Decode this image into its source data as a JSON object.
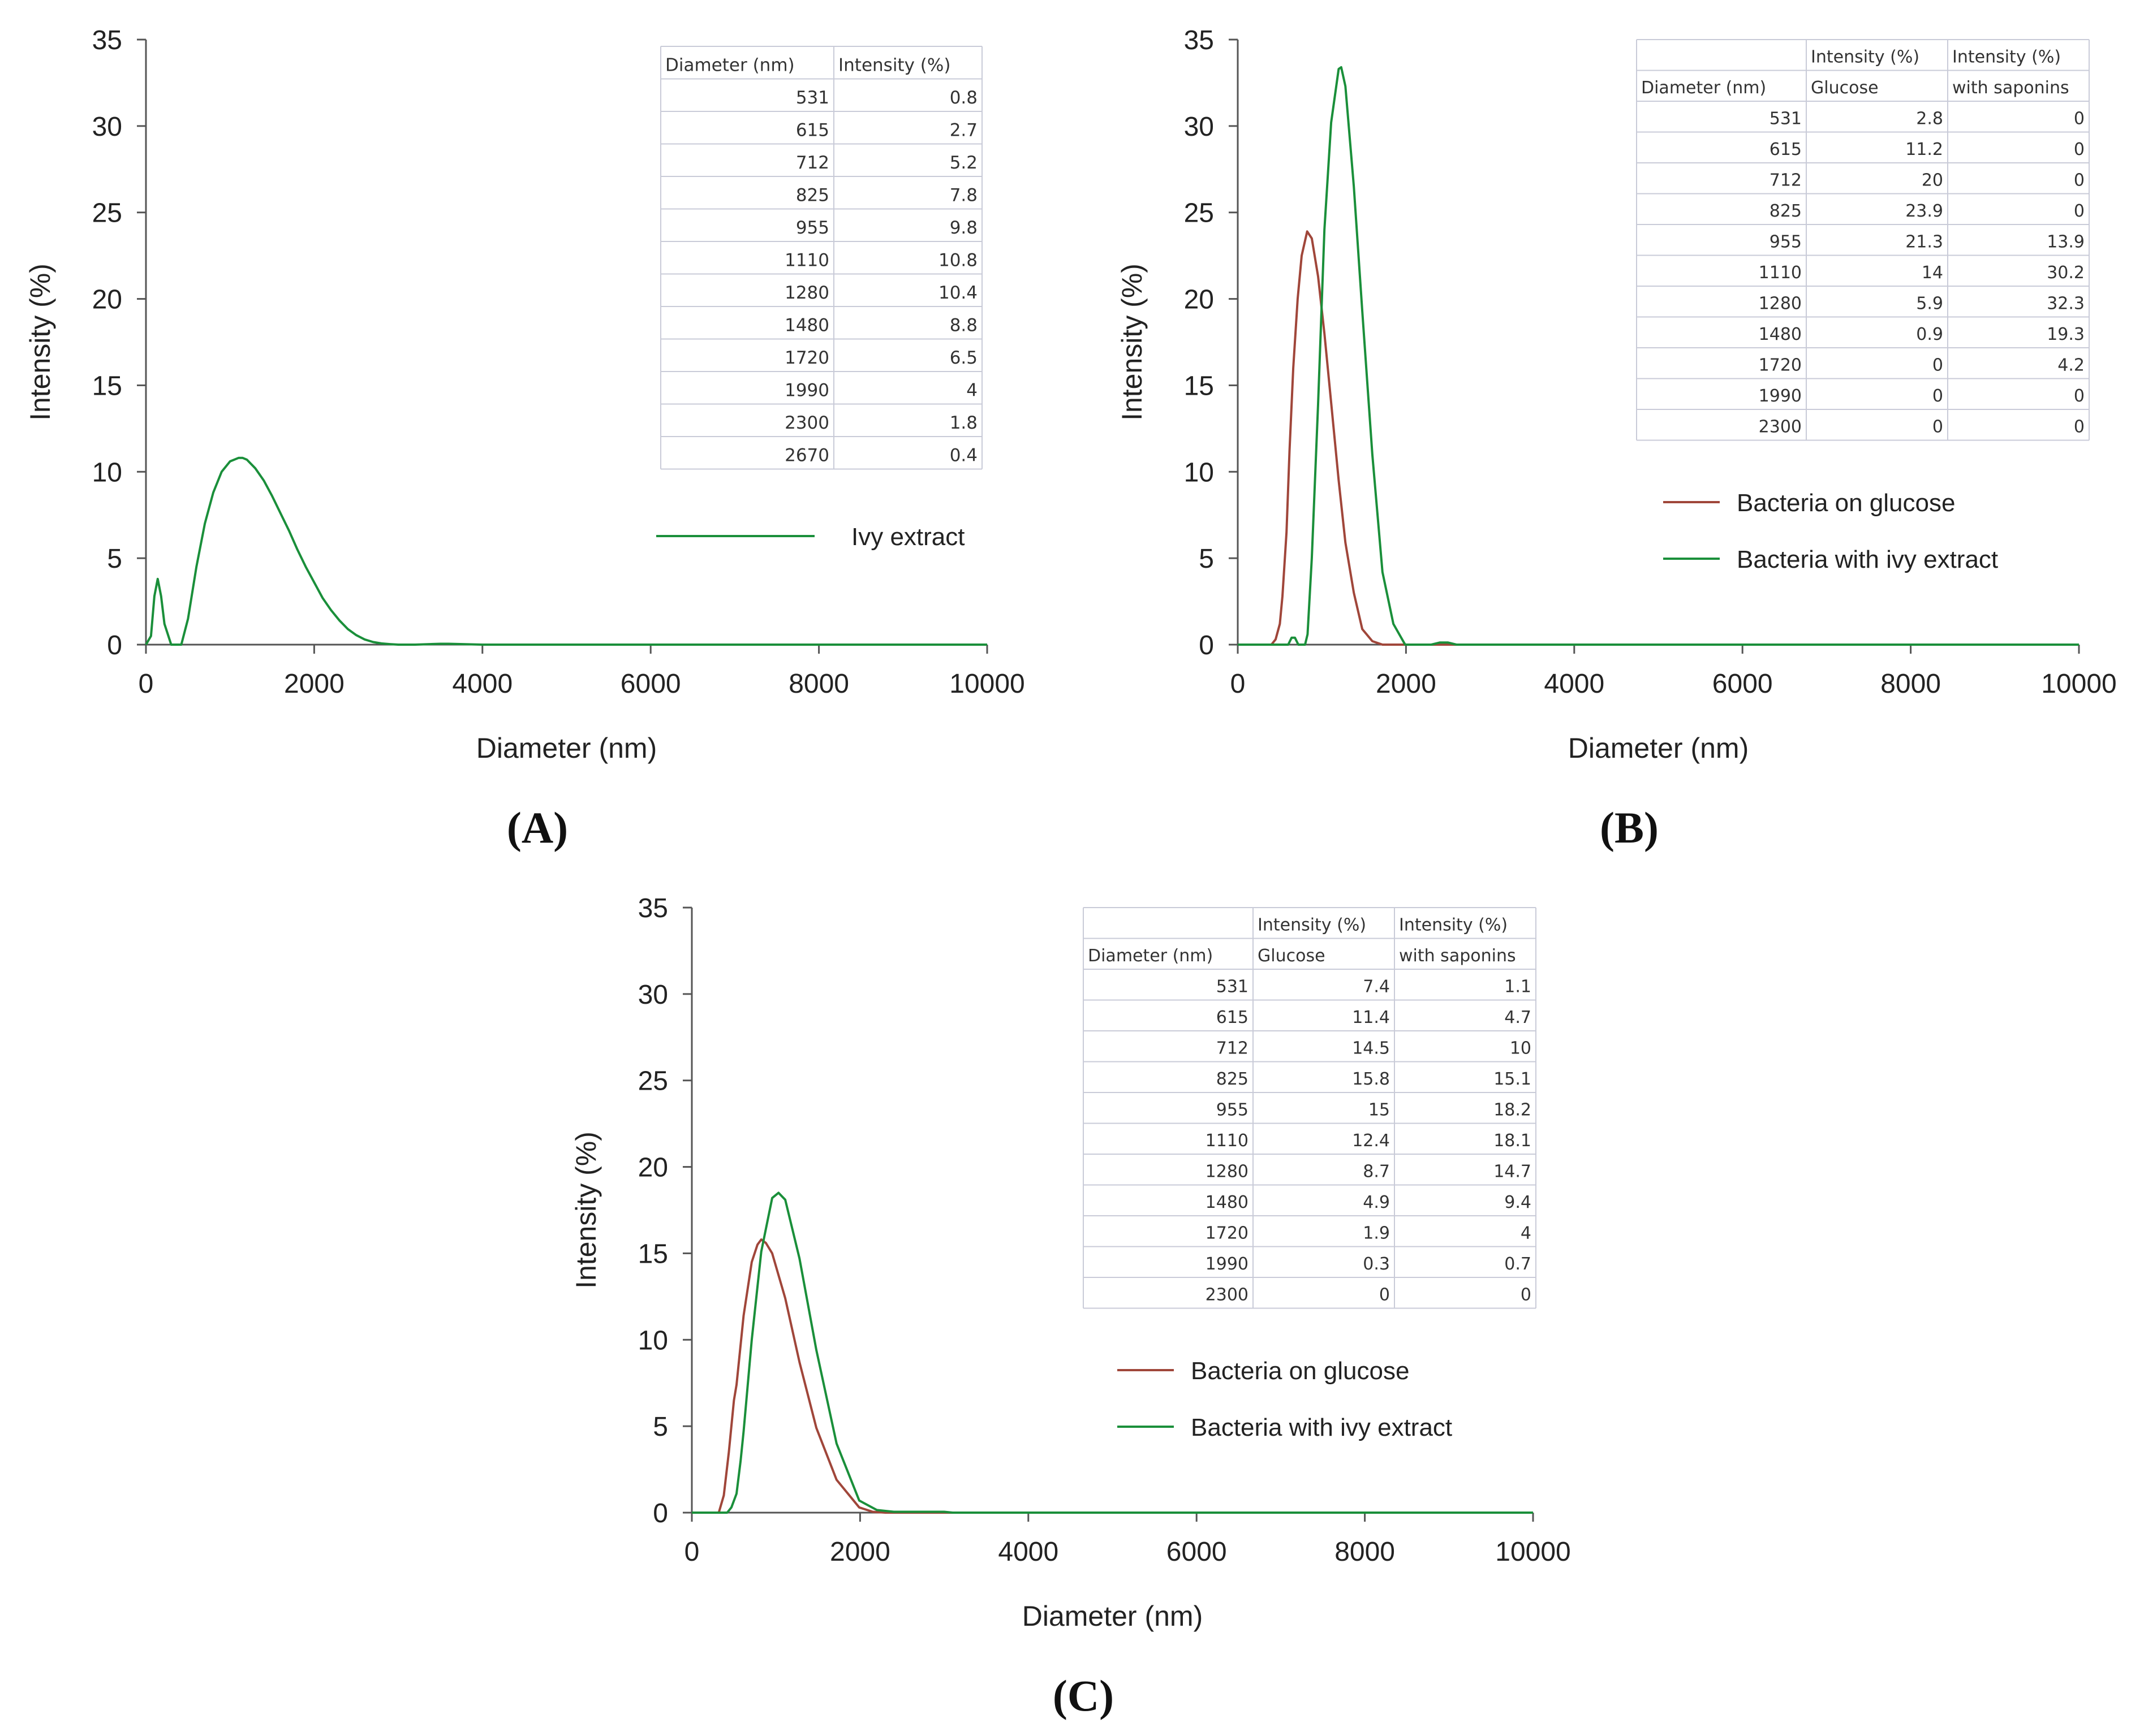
{
  "figure": {
    "panels": [
      {
        "label": "(A)",
        "chart_data": {
          "type": "line",
          "xlabel": "Diameter (nm)",
          "ylabel": "Intensity (%)",
          "xlim": [
            0,
            10000
          ],
          "ylim": [
            0,
            35
          ],
          "xticks": [
            "0",
            "2000",
            "4000",
            "6000",
            "8000",
            "10000"
          ],
          "yticks": [
            "0",
            "5",
            "10",
            "15",
            "20",
            "25",
            "30",
            "35"
          ],
          "series": [
            {
              "name": "Ivy extract",
              "color": "#1a8f3a",
              "x": [
                0,
                60,
                100,
                140,
                180,
                220,
                300,
                420,
                500,
                600,
                700,
                800,
                900,
                1000,
                1100,
                1150,
                1200,
                1300,
                1400,
                1500,
                1600,
                1700,
                1800,
                1900,
                2000,
                2100,
                2200,
                2300,
                2400,
                2500,
                2600,
                2700,
                2800,
                2900,
                3000,
                3200,
                3500,
                3600,
                4000,
                10000
              ],
              "y": [
                0,
                0.5,
                2.8,
                3.8,
                2.8,
                1.2,
                0,
                0,
                1.5,
                4.5,
                7.0,
                8.8,
                10.0,
                10.6,
                10.8,
                10.8,
                10.7,
                10.2,
                9.5,
                8.6,
                7.6,
                6.6,
                5.5,
                4.5,
                3.6,
                2.7,
                2.0,
                1.4,
                0.9,
                0.55,
                0.3,
                0.15,
                0.07,
                0.03,
                0,
                0,
                0.05,
                0.05,
                0,
                0
              ]
            }
          ],
          "table": {
            "headers": [
              [
                "Diameter (nm)",
                "Intensity (%)"
              ]
            ],
            "rows": [
              [
                "531",
                "0.8"
              ],
              [
                "615",
                "2.7"
              ],
              [
                "712",
                "5.2"
              ],
              [
                "825",
                "7.8"
              ],
              [
                "955",
                "9.8"
              ],
              [
                "1110",
                "10.8"
              ],
              [
                "1280",
                "10.4"
              ],
              [
                "1480",
                "8.8"
              ],
              [
                "1720",
                "6.5"
              ],
              [
                "1990",
                "4"
              ],
              [
                "2300",
                "1.8"
              ],
              [
                "2670",
                "0.4"
              ]
            ]
          }
        }
      },
      {
        "label": "(B)",
        "chart_data": {
          "type": "line",
          "xlabel": "Diameter (nm)",
          "ylabel": "Intensity (%)",
          "xlim": [
            0,
            10000
          ],
          "ylim": [
            0,
            35
          ],
          "xticks": [
            "0",
            "2000",
            "4000",
            "6000",
            "8000",
            "10000"
          ],
          "yticks": [
            "0",
            "5",
            "10",
            "15",
            "20",
            "25",
            "30",
            "35"
          ],
          "series": [
            {
              "name": "Bacteria on glucose",
              "color": "#a0463a",
              "x": [
                0,
                400,
                450,
                500,
                531,
                580,
                615,
                660,
                712,
                760,
                825,
                880,
                955,
                1030,
                1110,
                1200,
                1280,
                1380,
                1480,
                1600,
                1720,
                2000,
                10000
              ],
              "y": [
                0,
                0,
                0.3,
                1.2,
                2.8,
                6.5,
                11.2,
                16.0,
                20.0,
                22.5,
                23.9,
                23.5,
                21.3,
                18.0,
                14.0,
                9.5,
                5.9,
                3.0,
                0.9,
                0.2,
                0,
                0,
                0
              ]
            },
            {
              "name": "Bacteria with ivy extract",
              "color": "#1a8f3a",
              "x": [
                0,
                600,
                640,
                680,
                720,
                800,
                830,
                880,
                955,
                1030,
                1110,
                1200,
                1230,
                1280,
                1380,
                1480,
                1600,
                1720,
                1850,
                1990,
                2300,
                2400,
                2500,
                2600,
                10000
              ],
              "y": [
                0,
                0,
                0.4,
                0.4,
                0,
                0,
                0.6,
                5.0,
                13.9,
                24.0,
                30.2,
                33.3,
                33.4,
                32.3,
                26.5,
                19.3,
                11.0,
                4.2,
                1.2,
                0,
                0,
                0.12,
                0.12,
                0,
                0
              ]
            }
          ],
          "legend": [
            "Bacteria on glucose",
            "Bacteria with ivy extract"
          ],
          "table": {
            "headers": [
              [
                "",
                "Intensity (%)",
                "Intensity (%)"
              ],
              [
                "Diameter (nm)",
                "Glucose",
                "with saponins"
              ]
            ],
            "rows": [
              [
                "531",
                "2.8",
                "0"
              ],
              [
                "615",
                "11.2",
                "0"
              ],
              [
                "712",
                "20",
                "0"
              ],
              [
                "825",
                "23.9",
                "0"
              ],
              [
                "955",
                "21.3",
                "13.9"
              ],
              [
                "1110",
                "14",
                "30.2"
              ],
              [
                "1280",
                "5.9",
                "32.3"
              ],
              [
                "1480",
                "0.9",
                "19.3"
              ],
              [
                "1720",
                "0",
                "4.2"
              ],
              [
                "1990",
                "0",
                "0"
              ],
              [
                "2300",
                "0",
                "0"
              ]
            ]
          }
        }
      },
      {
        "label": "(C)",
        "chart_data": {
          "type": "line",
          "xlabel": "Diameter (nm)",
          "ylabel": "Intensity (%)",
          "xlim": [
            0,
            10000
          ],
          "ylim": [
            0,
            35
          ],
          "xticks": [
            "0",
            "2000",
            "4000",
            "6000",
            "8000",
            "10000"
          ],
          "yticks": [
            "0",
            "5",
            "10",
            "15",
            "20",
            "25",
            "30",
            "35"
          ],
          "series": [
            {
              "name": "Bacteria on glucose",
              "color": "#a0463a",
              "x": [
                0,
                320,
                380,
                440,
                500,
                531,
                615,
                712,
                780,
                825,
                880,
                955,
                1110,
                1280,
                1480,
                1720,
                1990,
                2150,
                2300,
                10000
              ],
              "y": [
                0,
                0,
                1.0,
                3.5,
                6.5,
                7.4,
                11.4,
                14.5,
                15.5,
                15.8,
                15.6,
                15.0,
                12.4,
                8.7,
                4.9,
                1.9,
                0.3,
                0.05,
                0,
                0
              ]
            },
            {
              "name": "Bacteria with ivy extract",
              "color": "#1a8f3a",
              "x": [
                0,
                420,
                470,
                531,
                580,
                615,
                712,
                825,
                955,
                1030,
                1110,
                1280,
                1480,
                1720,
                1990,
                2200,
                2400,
                3000,
                3100,
                10000
              ],
              "y": [
                0,
                0,
                0.3,
                1.1,
                3.0,
                4.7,
                10.0,
                15.1,
                18.2,
                18.5,
                18.1,
                14.7,
                9.4,
                4.0,
                0.7,
                0.15,
                0.05,
                0.05,
                0,
                0
              ]
            }
          ],
          "legend": [
            "Bacteria on glucose",
            "Bacteria with ivy extract"
          ],
          "table": {
            "headers": [
              [
                "",
                "Intensity (%)",
                "Intensity (%)"
              ],
              [
                "Diameter (nm)",
                "Glucose",
                "with saponins"
              ]
            ],
            "rows": [
              [
                "531",
                "7.4",
                "1.1"
              ],
              [
                "615",
                "11.4",
                "4.7"
              ],
              [
                "712",
                "14.5",
                "10"
              ],
              [
                "825",
                "15.8",
                "15.1"
              ],
              [
                "955",
                "15",
                "18.2"
              ],
              [
                "1110",
                "12.4",
                "18.1"
              ],
              [
                "1280",
                "8.7",
                "14.7"
              ],
              [
                "1480",
                "4.9",
                "9.4"
              ],
              [
                "1720",
                "1.9",
                "4"
              ],
              [
                "1990",
                "0.3",
                "0.7"
              ],
              [
                "2300",
                "0",
                "0"
              ]
            ]
          }
        }
      }
    ]
  }
}
